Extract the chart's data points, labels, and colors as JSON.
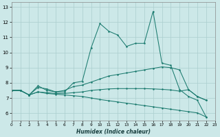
{
  "xlabel": "Humidex (Indice chaleur)",
  "x_ticks": [
    0,
    1,
    2,
    3,
    4,
    5,
    6,
    7,
    8,
    9,
    10,
    11,
    12,
    13,
    14,
    15,
    16,
    17,
    18,
    19,
    20,
    21,
    22,
    23
  ],
  "xlim": [
    0,
    23
  ],
  "ylim": [
    5.5,
    13.3
  ],
  "y_ticks": [
    6,
    7,
    8,
    9,
    10,
    11,
    12,
    13
  ],
  "bg_color": "#cce8e8",
  "line_color": "#1a7a6e",
  "grid_color": "#aacece",
  "line1_x": [
    0,
    1,
    2,
    3,
    4,
    5,
    6,
    7,
    8,
    9,
    10,
    11,
    12,
    13,
    14,
    15,
    16,
    17,
    18,
    19,
    20,
    21,
    22
  ],
  "line1_y": [
    7.5,
    7.5,
    7.2,
    7.8,
    7.5,
    7.4,
    7.4,
    8.0,
    8.1,
    10.3,
    11.9,
    11.4,
    11.15,
    10.4,
    10.6,
    10.6,
    12.7,
    9.3,
    9.15,
    7.55,
    7.1,
    6.85,
    5.75
  ],
  "line2_x": [
    0,
    1,
    2,
    3,
    4,
    5,
    6,
    7,
    8,
    9,
    10,
    11,
    12,
    13,
    14,
    15,
    16,
    17,
    18,
    19,
    20,
    21,
    22
  ],
  "line2_y": [
    7.5,
    7.5,
    7.2,
    7.7,
    7.6,
    7.4,
    7.5,
    7.75,
    7.85,
    8.05,
    8.25,
    8.45,
    8.55,
    8.65,
    8.75,
    8.85,
    8.95,
    9.05,
    9.0,
    8.85,
    7.55,
    7.1,
    6.85
  ],
  "line3_x": [
    0,
    1,
    2,
    3,
    4,
    5,
    6,
    7,
    8,
    9,
    10,
    11,
    12,
    13,
    14,
    15,
    16,
    17,
    18,
    19,
    20,
    21,
    22
  ],
  "line3_y": [
    7.5,
    7.5,
    7.2,
    7.4,
    7.35,
    7.3,
    7.3,
    7.35,
    7.4,
    7.5,
    7.55,
    7.6,
    7.62,
    7.62,
    7.62,
    7.62,
    7.6,
    7.57,
    7.53,
    7.45,
    7.55,
    7.1,
    6.85
  ],
  "line4_x": [
    0,
    1,
    2,
    3,
    4,
    5,
    6,
    7,
    8,
    9,
    10,
    11,
    12,
    13,
    14,
    15,
    16,
    17,
    18,
    19,
    20,
    21,
    22
  ],
  "line4_y": [
    7.5,
    7.5,
    7.2,
    7.4,
    7.3,
    7.25,
    7.2,
    7.15,
    7.1,
    7.0,
    6.9,
    6.82,
    6.74,
    6.66,
    6.58,
    6.5,
    6.42,
    6.34,
    6.26,
    6.18,
    6.1,
    6.02,
    5.75
  ]
}
